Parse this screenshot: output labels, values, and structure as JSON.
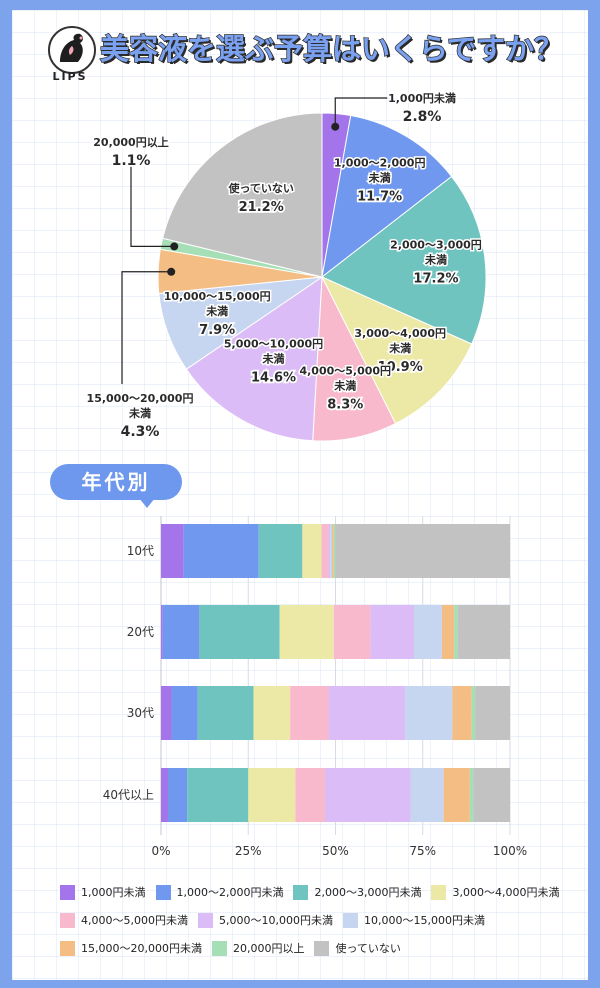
{
  "header": {
    "logo_text": "LIPS",
    "title": "美容液を選ぶ予算はいくらですか？"
  },
  "section_badge": "年代別",
  "colors": {
    "c1": "#a374ea",
    "c2": "#6f98ee",
    "c3": "#6fc4bf",
    "c4": "#ece9a6",
    "c5": "#f8b9cc",
    "c6": "#dcbcf6",
    "c7": "#c6d5f0",
    "c8": "#f3bd83",
    "c9": "#a6dfb6",
    "c10": "#c2c2c2"
  },
  "chart_data": [
    {
      "type": "pie",
      "title": "美容液を選ぶ予算はいくらですか？",
      "slices": [
        {
          "name": "1,000円未満",
          "label_lines": [
            "1,000円未満"
          ],
          "pct_text": "2.8%",
          "value": 2.8
        },
        {
          "name": "1,000〜2,000円未満",
          "label_lines": [
            "1,000〜2,000円",
            "未満"
          ],
          "pct_text": "11.7%",
          "value": 11.7
        },
        {
          "name": "2,000〜3,000円未満",
          "label_lines": [
            "2,000〜3,000円",
            "未満"
          ],
          "pct_text": "17.2%",
          "value": 17.2
        },
        {
          "name": "3,000〜4,000円未満",
          "label_lines": [
            "3,000〜4,000円",
            "未満"
          ],
          "pct_text": "10.9%",
          "value": 10.9
        },
        {
          "name": "4,000〜5,000円未満",
          "label_lines": [
            "4,000〜5,000円",
            "未満"
          ],
          "pct_text": "8.3%",
          "value": 8.3
        },
        {
          "name": "5,000〜10,000円未満",
          "label_lines": [
            "5,000〜10,000円",
            "未満"
          ],
          "pct_text": "14.6%",
          "value": 14.6
        },
        {
          "name": "10,000〜15,000円未満",
          "label_lines": [
            "10,000〜15,000円",
            "未満"
          ],
          "pct_text": "7.9%",
          "value": 7.9
        },
        {
          "name": "15,000〜20,000円未満",
          "label_lines": [
            "15,000〜20,000円",
            "未満"
          ],
          "pct_text": "4.3%",
          "value": 4.3
        },
        {
          "name": "20,000円以上",
          "label_lines": [
            "20,000円以上"
          ],
          "pct_text": "1.1%",
          "value": 1.1
        },
        {
          "name": "使っていない",
          "label_lines": [
            "使っていない"
          ],
          "pct_text": "21.2%",
          "value": 21.2
        }
      ]
    },
    {
      "type": "bar",
      "stacked": true,
      "orientation": "horizontal",
      "categories": [
        "10代",
        "20代",
        "30代",
        "40代以上"
      ],
      "xlim": [
        0,
        100
      ],
      "x_ticks": [
        "0%",
        "25%",
        "50%",
        "75%",
        "100%"
      ],
      "grid": true,
      "legend_position": "bottom",
      "series": [
        {
          "name": "1,000円未満",
          "values": [
            6.5,
            0.5,
            3.0,
            2.0
          ]
        },
        {
          "name": "1,000〜2,000円未満",
          "values": [
            21.5,
            10.5,
            7.5,
            5.5
          ]
        },
        {
          "name": "2,000〜3,000円未満",
          "values": [
            12.5,
            23.0,
            16.0,
            17.5
          ]
        },
        {
          "name": "3,000〜4,000円未満",
          "values": [
            5.5,
            15.5,
            10.5,
            13.5
          ]
        },
        {
          "name": "4,000〜5,000円未満",
          "values": [
            2.0,
            10.5,
            11.0,
            8.5
          ]
        },
        {
          "name": "5,000〜10,000円未満",
          "values": [
            0.5,
            12.5,
            22.0,
            24.5
          ]
        },
        {
          "name": "10,000〜15,000円未満",
          "values": [
            0.5,
            8.0,
            13.5,
            9.5
          ]
        },
        {
          "name": "15,000〜20,000円未満",
          "values": [
            0.5,
            3.5,
            5.5,
            7.5
          ]
        },
        {
          "name": "20,000円以上",
          "values": [
            0.5,
            1.0,
            1.0,
            1.0
          ]
        },
        {
          "name": "使っていない",
          "values": [
            50.0,
            15.0,
            10.0,
            10.5
          ]
        }
      ]
    }
  ]
}
